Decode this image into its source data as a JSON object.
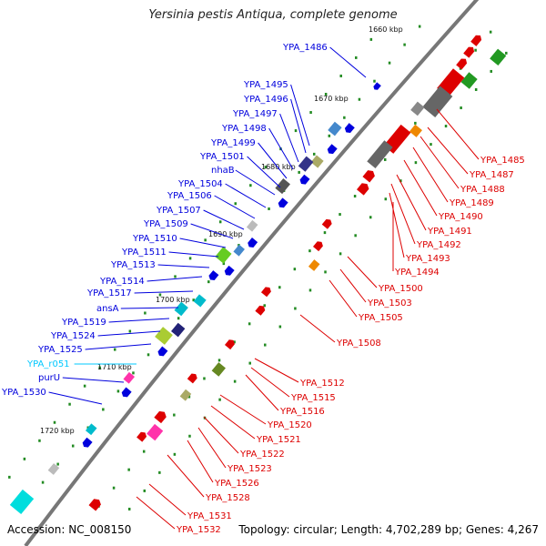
{
  "title": "Yersinia pestis Antiqua, complete genome",
  "footer": {
    "accession": "Accession: NC_008150",
    "meta": "Topology: circular; Length: 4,702,289 bp; Genes: 4,267"
  },
  "colors": {
    "forward": "#0000dd",
    "reverse": "#dd0000",
    "rna": "#00c8ff",
    "backbone": "#777777",
    "tick": "#228b22"
  },
  "kbp_marks": [
    "1660 kbp",
    "1670 kbp",
    "1680 kbp",
    "1690 kbp",
    "1700 kbp",
    "1710 kbp",
    "1720 kbp"
  ],
  "left_labels": [
    {
      "text": "YPA_1486",
      "kind": "forward"
    },
    {
      "text": "YPA_1495",
      "kind": "forward"
    },
    {
      "text": "YPA_1496",
      "kind": "forward"
    },
    {
      "text": "YPA_1497",
      "kind": "forward"
    },
    {
      "text": "YPA_1498",
      "kind": "forward"
    },
    {
      "text": "YPA_1499",
      "kind": "forward"
    },
    {
      "text": "YPA_1501",
      "kind": "forward"
    },
    {
      "text": "nhaB",
      "kind": "forward"
    },
    {
      "text": "YPA_1504",
      "kind": "forward"
    },
    {
      "text": "YPA_1506",
      "kind": "forward"
    },
    {
      "text": "YPA_1507",
      "kind": "forward"
    },
    {
      "text": "YPA_1509",
      "kind": "forward"
    },
    {
      "text": "YPA_1510",
      "kind": "forward"
    },
    {
      "text": "YPA_1511",
      "kind": "forward"
    },
    {
      "text": "YPA_1513",
      "kind": "forward"
    },
    {
      "text": "YPA_1514",
      "kind": "forward"
    },
    {
      "text": "YPA_1517",
      "kind": "forward"
    },
    {
      "text": "ansA",
      "kind": "forward"
    },
    {
      "text": "YPA_1519",
      "kind": "forward"
    },
    {
      "text": "YPA_1524",
      "kind": "forward"
    },
    {
      "text": "YPA_1525",
      "kind": "forward"
    },
    {
      "text": "YPA_r051",
      "kind": "rna"
    },
    {
      "text": "purU",
      "kind": "forward"
    },
    {
      "text": "YPA_1530",
      "kind": "forward"
    }
  ],
  "right_labels": [
    {
      "text": "YPA_1485",
      "kind": "reverse"
    },
    {
      "text": "YPA_1487",
      "kind": "reverse"
    },
    {
      "text": "YPA_1488",
      "kind": "reverse"
    },
    {
      "text": "YPA_1489",
      "kind": "reverse"
    },
    {
      "text": "YPA_1490",
      "kind": "reverse"
    },
    {
      "text": "YPA_1491",
      "kind": "reverse"
    },
    {
      "text": "YPA_1492",
      "kind": "reverse"
    },
    {
      "text": "YPA_1493",
      "kind": "reverse"
    },
    {
      "text": "YPA_1494",
      "kind": "reverse"
    },
    {
      "text": "YPA_1500",
      "kind": "reverse"
    },
    {
      "text": "YPA_1503",
      "kind": "reverse"
    },
    {
      "text": "YPA_1505",
      "kind": "reverse"
    },
    {
      "text": "YPA_1508",
      "kind": "reverse"
    },
    {
      "text": "YPA_1512",
      "kind": "reverse"
    },
    {
      "text": "YPA_1515",
      "kind": "reverse"
    },
    {
      "text": "YPA_1516",
      "kind": "reverse"
    },
    {
      "text": "YPA_1520",
      "kind": "reverse"
    },
    {
      "text": "YPA_1521",
      "kind": "reverse"
    },
    {
      "text": "YPA_1522",
      "kind": "reverse"
    },
    {
      "text": "YPA_1523",
      "kind": "reverse"
    },
    {
      "text": "YPA_1526",
      "kind": "reverse"
    },
    {
      "text": "YPA_1528",
      "kind": "reverse"
    },
    {
      "text": "YPA_1531",
      "kind": "reverse"
    },
    {
      "text": "YPA_1532",
      "kind": "reverse"
    }
  ]
}
